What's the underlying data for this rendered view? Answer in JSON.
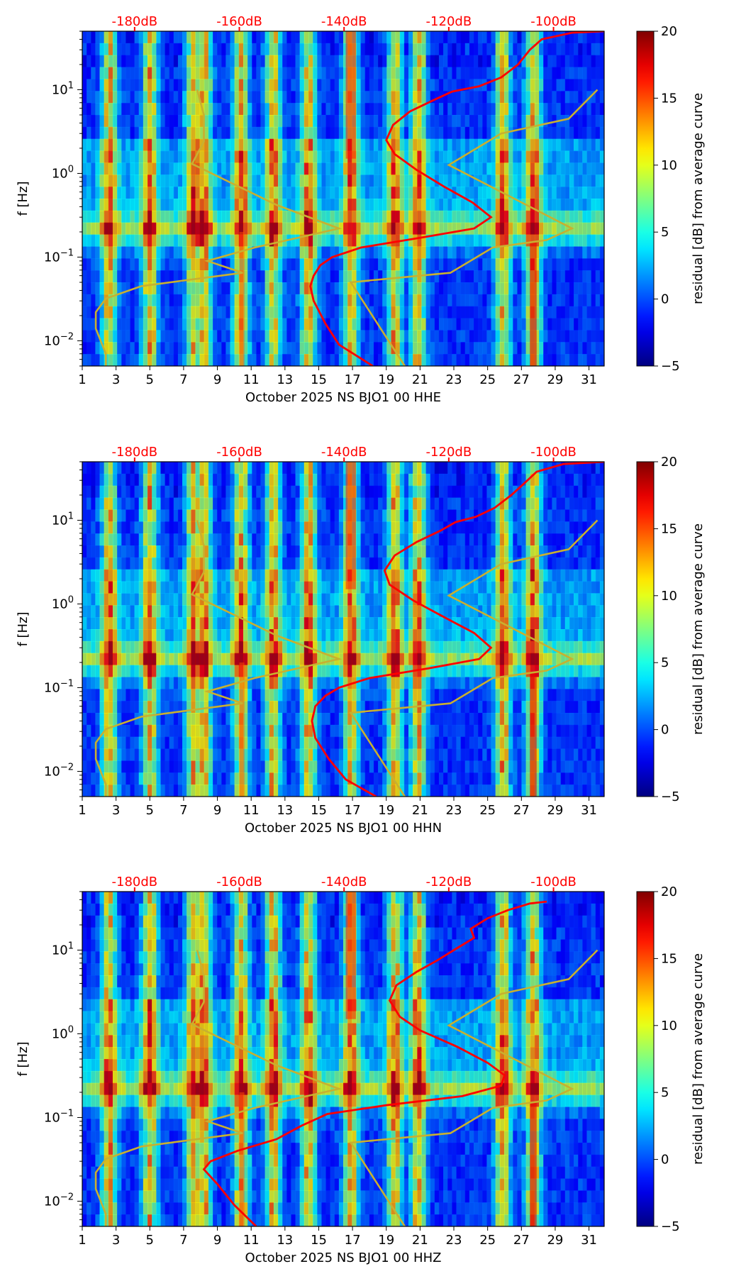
{
  "chart_data": [
    {
      "type": "heatmap",
      "xlabel": "October 2025 NS BJO1 00 HHE",
      "ylabel": "f [Hz]",
      "xticks": [
        "1",
        "3",
        "5",
        "7",
        "9",
        "11",
        "13",
        "15",
        "17",
        "19",
        "21",
        "23",
        "25",
        "27",
        "29",
        "31"
      ],
      "xrange": [
        1,
        31.9
      ],
      "yscale": "log",
      "yrange": [
        0.005,
        50
      ],
      "yticks": [
        {
          "value": 0.01,
          "base": "10",
          "exp": "−2"
        },
        {
          "value": 0.1,
          "base": "10",
          "exp": "−1"
        },
        {
          "value": 1,
          "base": "10",
          "exp": "0"
        },
        {
          "value": 10,
          "base": "10",
          "exp": "1"
        }
      ],
      "top_ticks": [
        {
          "label": "-180dB",
          "x": 4.1
        },
        {
          "label": "-160dB",
          "x": 10.3
        },
        {
          "label": "-140dB",
          "x": 16.5
        },
        {
          "label": "-120dB",
          "x": 22.7
        },
        {
          "label": "-100dB",
          "x": 28.9
        }
      ],
      "colorbar": {
        "label": "residual [dB] from average curve",
        "min": -5,
        "max": 20,
        "ticks": [
          -5,
          0,
          5,
          10,
          15,
          20
        ],
        "colormap": "jet"
      },
      "average_curve_color": "#ff0000",
      "model_curve_color": "#c8b030",
      "bright_days": [
        2.6,
        5.0,
        7.6,
        8.2,
        10.4,
        12.3,
        14.4,
        16.9,
        19.5,
        20.9,
        25.9,
        27.7
      ],
      "red_curve": [
        {
          "x": 18.2,
          "f": 0.005
        },
        {
          "x": 16.2,
          "f": 0.009
        },
        {
          "x": 15.4,
          "f": 0.016
        },
        {
          "x": 14.7,
          "f": 0.03
        },
        {
          "x": 14.5,
          "f": 0.045
        },
        {
          "x": 14.7,
          "f": 0.06
        },
        {
          "x": 15.1,
          "f": 0.08
        },
        {
          "x": 15.8,
          "f": 0.1
        },
        {
          "x": 17.5,
          "f": 0.13
        },
        {
          "x": 21.0,
          "f": 0.17
        },
        {
          "x": 24.2,
          "f": 0.22
        },
        {
          "x": 25.2,
          "f": 0.3
        },
        {
          "x": 24.1,
          "f": 0.45
        },
        {
          "x": 22.4,
          "f": 0.7
        },
        {
          "x": 20.8,
          "f": 1.1
        },
        {
          "x": 19.5,
          "f": 1.7
        },
        {
          "x": 19.0,
          "f": 2.5
        },
        {
          "x": 19.4,
          "f": 3.8
        },
        {
          "x": 20.4,
          "f": 5.5
        },
        {
          "x": 21.8,
          "f": 7.5
        },
        {
          "x": 22.9,
          "f": 9.5
        },
        {
          "x": 24.5,
          "f": 11
        },
        {
          "x": 25.8,
          "f": 14
        },
        {
          "x": 26.8,
          "f": 20
        },
        {
          "x": 27.5,
          "f": 30
        },
        {
          "x": 28.2,
          "f": 40
        },
        {
          "x": 30.0,
          "f": 48
        },
        {
          "x": 31.9,
          "f": 50
        }
      ],
      "model_curve": [
        {
          "x": 2.4,
          "f": 0.005
        },
        {
          "x": 2.4,
          "f": 0.007
        },
        {
          "x": 1.8,
          "f": 0.014
        },
        {
          "x": 1.8,
          "f": 0.022
        },
        {
          "x": 2.4,
          "f": 0.032
        },
        {
          "x": 4.5,
          "f": 0.045
        },
        {
          "x": 10.5,
          "f": 0.065
        },
        {
          "x": 8.4,
          "f": 0.09
        },
        {
          "x": 11.2,
          "f": 0.13
        },
        {
          "x": 16.2,
          "f": 0.22
        },
        {
          "x": 12.5,
          "f": 0.42
        },
        {
          "x": 7.5,
          "f": 1.3
        },
        {
          "x": 8.2,
          "f": 2.4
        },
        {
          "x": 8.2,
          "f": 5.0
        },
        {
          "x": 7.8,
          "f": 10
        },
        null,
        {
          "x": 20.1,
          "f": 0.005
        },
        {
          "x": 16.9,
          "f": 0.05
        },
        {
          "x": 22.8,
          "f": 0.065
        },
        {
          "x": 25.3,
          "f": 0.13
        },
        {
          "x": 28.5,
          "f": 0.16
        },
        {
          "x": 30.0,
          "f": 0.22
        },
        {
          "x": 22.7,
          "f": 1.26
        },
        {
          "x": 25.8,
          "f": 3.0
        },
        {
          "x": 29.8,
          "f": 4.5
        },
        {
          "x": 31.5,
          "f": 10
        }
      ]
    },
    {
      "type": "heatmap",
      "xlabel": "October 2025 NS BJO1 00 HHN",
      "ylabel": "f [Hz]",
      "xticks": [
        "1",
        "3",
        "5",
        "7",
        "9",
        "11",
        "13",
        "15",
        "17",
        "19",
        "21",
        "23",
        "25",
        "27",
        "29",
        "31"
      ],
      "xrange": [
        1,
        31.9
      ],
      "yscale": "log",
      "yrange": [
        0.005,
        50
      ],
      "yticks": [
        {
          "value": 0.01,
          "base": "10",
          "exp": "−2"
        },
        {
          "value": 0.1,
          "base": "10",
          "exp": "−1"
        },
        {
          "value": 1,
          "base": "10",
          "exp": "0"
        },
        {
          "value": 10,
          "base": "10",
          "exp": "1"
        }
      ],
      "top_ticks": [
        {
          "label": "-180dB",
          "x": 4.1
        },
        {
          "label": "-160dB",
          "x": 10.3
        },
        {
          "label": "-140dB",
          "x": 16.5
        },
        {
          "label": "-120dB",
          "x": 22.7
        },
        {
          "label": "-100dB",
          "x": 28.9
        }
      ],
      "colorbar": {
        "label": "residual [dB] from average curve",
        "min": -5,
        "max": 20,
        "ticks": [
          -5,
          0,
          5,
          10,
          15,
          20
        ],
        "colormap": "jet"
      },
      "average_curve_color": "#ff0000",
      "model_curve_color": "#c8b030",
      "bright_days": [
        2.6,
        5.0,
        7.6,
        8.2,
        10.4,
        12.3,
        14.4,
        16.9,
        19.5,
        20.9,
        25.9,
        27.7
      ],
      "red_curve": [
        {
          "x": 18.4,
          "f": 0.005
        },
        {
          "x": 16.6,
          "f": 0.008
        },
        {
          "x": 15.6,
          "f": 0.014
        },
        {
          "x": 14.8,
          "f": 0.025
        },
        {
          "x": 14.6,
          "f": 0.04
        },
        {
          "x": 14.8,
          "f": 0.06
        },
        {
          "x": 15.4,
          "f": 0.08
        },
        {
          "x": 16.2,
          "f": 0.1
        },
        {
          "x": 18.0,
          "f": 0.13
        },
        {
          "x": 21.5,
          "f": 0.17
        },
        {
          "x": 24.5,
          "f": 0.22
        },
        {
          "x": 25.2,
          "f": 0.3
        },
        {
          "x": 24.2,
          "f": 0.45
        },
        {
          "x": 22.4,
          "f": 0.7
        },
        {
          "x": 20.6,
          "f": 1.1
        },
        {
          "x": 19.2,
          "f": 1.7
        },
        {
          "x": 18.9,
          "f": 2.5
        },
        {
          "x": 19.5,
          "f": 3.8
        },
        {
          "x": 20.8,
          "f": 5.5
        },
        {
          "x": 22.2,
          "f": 7.5
        },
        {
          "x": 23.1,
          "f": 9.5
        },
        {
          "x": 24.3,
          "f": 11
        },
        {
          "x": 25.4,
          "f": 14
        },
        {
          "x": 26.4,
          "f": 20
        },
        {
          "x": 27.2,
          "f": 28
        },
        {
          "x": 27.9,
          "f": 38
        },
        {
          "x": 29.5,
          "f": 47
        },
        {
          "x": 31.9,
          "f": 50
        }
      ],
      "model_curve": [
        {
          "x": 2.4,
          "f": 0.005
        },
        {
          "x": 2.4,
          "f": 0.007
        },
        {
          "x": 1.8,
          "f": 0.014
        },
        {
          "x": 1.8,
          "f": 0.022
        },
        {
          "x": 2.4,
          "f": 0.032
        },
        {
          "x": 4.5,
          "f": 0.045
        },
        {
          "x": 10.5,
          "f": 0.065
        },
        {
          "x": 8.4,
          "f": 0.09
        },
        {
          "x": 11.2,
          "f": 0.13
        },
        {
          "x": 16.2,
          "f": 0.22
        },
        {
          "x": 12.5,
          "f": 0.42
        },
        {
          "x": 7.5,
          "f": 1.3
        },
        {
          "x": 8.2,
          "f": 2.4
        },
        {
          "x": 8.2,
          "f": 5.0
        },
        {
          "x": 7.8,
          "f": 10
        },
        null,
        {
          "x": 20.1,
          "f": 0.005
        },
        {
          "x": 16.9,
          "f": 0.05
        },
        {
          "x": 22.8,
          "f": 0.065
        },
        {
          "x": 25.3,
          "f": 0.13
        },
        {
          "x": 28.5,
          "f": 0.16
        },
        {
          "x": 30.0,
          "f": 0.22
        },
        {
          "x": 22.7,
          "f": 1.26
        },
        {
          "x": 25.8,
          "f": 3.0
        },
        {
          "x": 29.8,
          "f": 4.5
        },
        {
          "x": 31.5,
          "f": 10
        }
      ]
    },
    {
      "type": "heatmap",
      "xlabel": "October 2025 NS BJO1 00 HHZ",
      "ylabel": "f [Hz]",
      "xticks": [
        "1",
        "3",
        "5",
        "7",
        "9",
        "11",
        "13",
        "15",
        "17",
        "19",
        "21",
        "23",
        "25",
        "27",
        "29",
        "31"
      ],
      "xrange": [
        1,
        31.9
      ],
      "yscale": "log",
      "yrange": [
        0.005,
        50
      ],
      "yticks": [
        {
          "value": 0.01,
          "base": "10",
          "exp": "−2"
        },
        {
          "value": 0.1,
          "base": "10",
          "exp": "−1"
        },
        {
          "value": 1,
          "base": "10",
          "exp": "0"
        },
        {
          "value": 10,
          "base": "10",
          "exp": "1"
        }
      ],
      "top_ticks": [
        {
          "label": "-180dB",
          "x": 4.1
        },
        {
          "label": "-160dB",
          "x": 10.3
        },
        {
          "label": "-140dB",
          "x": 16.5
        },
        {
          "label": "-120dB",
          "x": 22.7
        },
        {
          "label": "-100dB",
          "x": 28.9
        }
      ],
      "colorbar": {
        "label": "residual [dB] from average curve",
        "min": -5,
        "max": 20,
        "ticks": [
          -5,
          0,
          5,
          10,
          15,
          20
        ],
        "colormap": "jet"
      },
      "average_curve_color": "#ff0000",
      "model_curve_color": "#c8b030",
      "bright_days": [
        2.6,
        5.0,
        7.6,
        8.2,
        10.4,
        12.3,
        14.4,
        16.9,
        19.5,
        20.9,
        25.9,
        27.7
      ],
      "red_curve": [
        {
          "x": 11.3,
          "f": 0.005
        },
        {
          "x": 10.0,
          "f": 0.009
        },
        {
          "x": 9.0,
          "f": 0.016
        },
        {
          "x": 8.2,
          "f": 0.024
        },
        {
          "x": 8.6,
          "f": 0.03
        },
        {
          "x": 10.2,
          "f": 0.04
        },
        {
          "x": 12.5,
          "f": 0.055
        },
        {
          "x": 14.0,
          "f": 0.08
        },
        {
          "x": 15.5,
          "f": 0.11
        },
        {
          "x": 19.0,
          "f": 0.14
        },
        {
          "x": 23.5,
          "f": 0.18
        },
        {
          "x": 25.8,
          "f": 0.24
        },
        {
          "x": 26.0,
          "f": 0.32
        },
        {
          "x": 25.0,
          "f": 0.45
        },
        {
          "x": 23.2,
          "f": 0.7
        },
        {
          "x": 21.0,
          "f": 1.1
        },
        {
          "x": 19.8,
          "f": 1.6
        },
        {
          "x": 19.2,
          "f": 2.5
        },
        {
          "x": 19.6,
          "f": 3.8
        },
        {
          "x": 20.8,
          "f": 5.5
        },
        {
          "x": 22.0,
          "f": 7.5
        },
        {
          "x": 23.0,
          "f": 10
        },
        {
          "x": 24.2,
          "f": 14
        },
        {
          "x": 24.0,
          "f": 18
        },
        {
          "x": 25.0,
          "f": 24
        },
        {
          "x": 26.2,
          "f": 30
        },
        {
          "x": 27.5,
          "f": 36
        },
        {
          "x": 28.5,
          "f": 38
        }
      ],
      "model_curve": [
        {
          "x": 2.4,
          "f": 0.005
        },
        {
          "x": 2.4,
          "f": 0.007
        },
        {
          "x": 1.8,
          "f": 0.014
        },
        {
          "x": 1.8,
          "f": 0.022
        },
        {
          "x": 2.4,
          "f": 0.032
        },
        {
          "x": 4.5,
          "f": 0.045
        },
        {
          "x": 10.5,
          "f": 0.065
        },
        {
          "x": 8.4,
          "f": 0.09
        },
        {
          "x": 11.2,
          "f": 0.13
        },
        {
          "x": 16.2,
          "f": 0.22
        },
        {
          "x": 12.5,
          "f": 0.42
        },
        {
          "x": 7.5,
          "f": 1.3
        },
        {
          "x": 8.2,
          "f": 2.4
        },
        {
          "x": 8.2,
          "f": 5.0
        },
        {
          "x": 7.8,
          "f": 10
        },
        null,
        {
          "x": 20.1,
          "f": 0.005
        },
        {
          "x": 16.9,
          "f": 0.05
        },
        {
          "x": 22.8,
          "f": 0.065
        },
        {
          "x": 25.3,
          "f": 0.13
        },
        {
          "x": 28.5,
          "f": 0.16
        },
        {
          "x": 30.0,
          "f": 0.22
        },
        {
          "x": 22.7,
          "f": 1.26
        },
        {
          "x": 25.8,
          "f": 3.0
        },
        {
          "x": 29.8,
          "f": 4.5
        },
        {
          "x": 31.5,
          "f": 10
        }
      ]
    }
  ]
}
